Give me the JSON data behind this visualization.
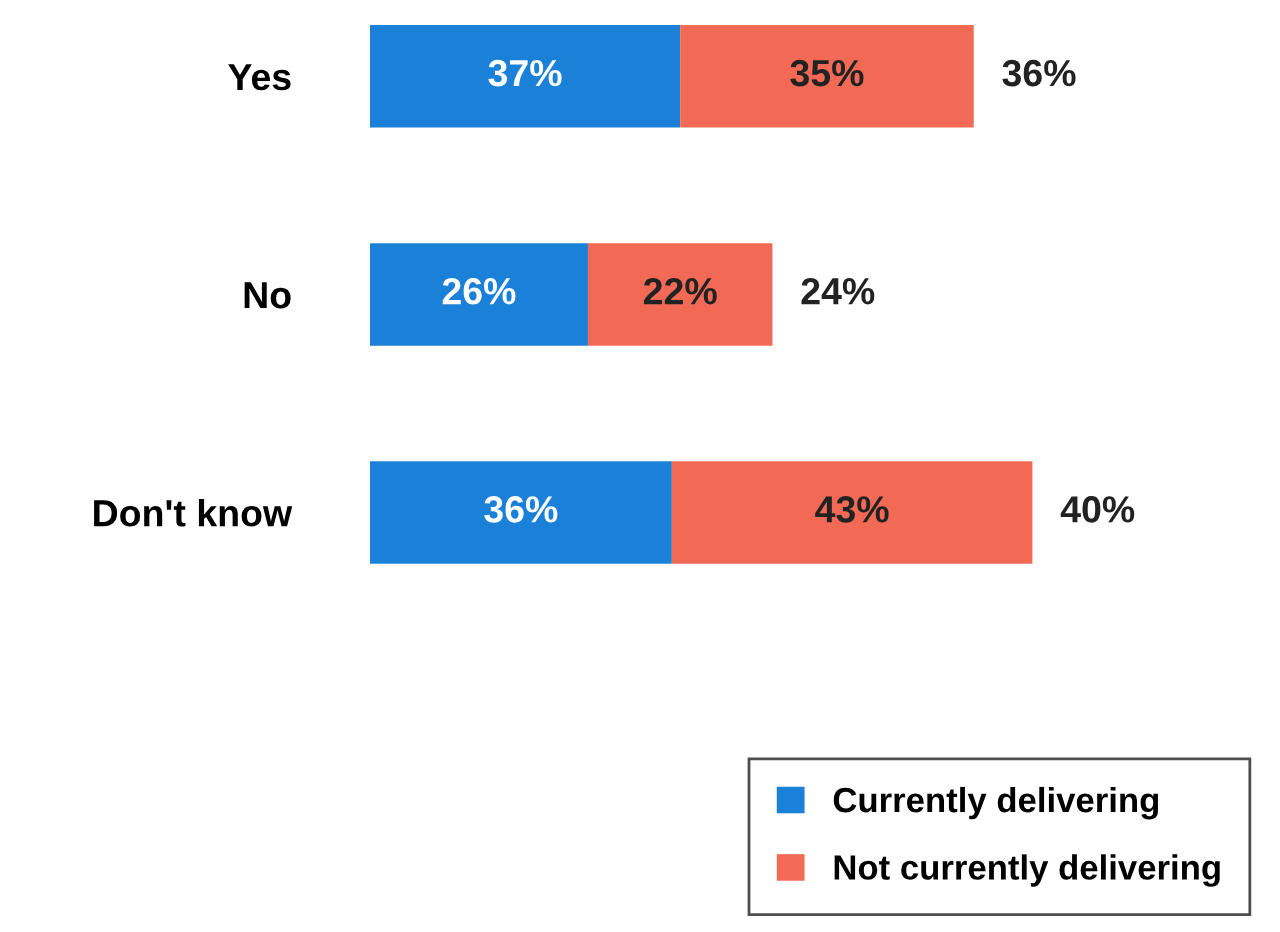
{
  "chart_data": {
    "type": "bar",
    "orientation": "horizontal",
    "stacked": true,
    "categories": [
      "Yes",
      "No",
      "Don't know"
    ],
    "series": [
      {
        "name": "Currently delivering",
        "color": "#1a80d8",
        "values": [
          37,
          26,
          36
        ],
        "value_labels": [
          "37%",
          "26%",
          "36%"
        ]
      },
      {
        "name": "Not currently delivering",
        "color": "#f26a55",
        "values": [
          35,
          22,
          43
        ],
        "value_labels": [
          "35%",
          "22%",
          "43%"
        ]
      }
    ],
    "annotations": [
      {
        "text": "36%",
        "x": 72,
        "y": "Yes"
      },
      {
        "text": "24%",
        "x": 48,
        "y": "No"
      },
      {
        "text": "40%",
        "x": 79,
        "y": "Don't know"
      }
    ],
    "legend": "bottom right"
  }
}
